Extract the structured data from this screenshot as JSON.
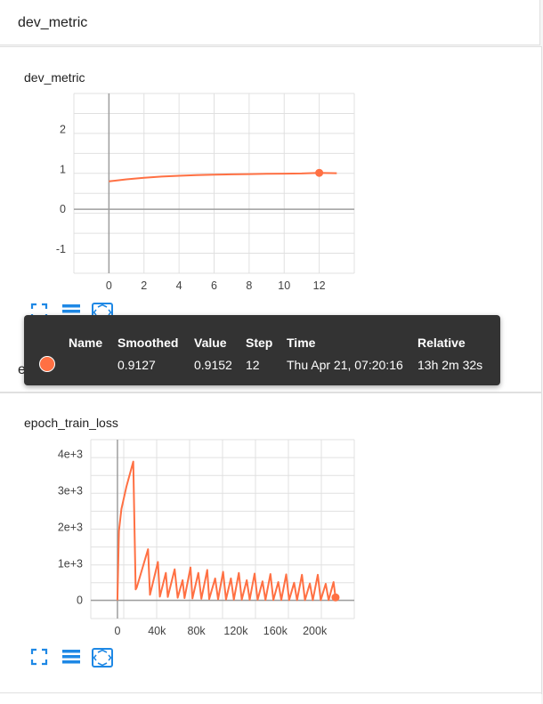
{
  "colors": {
    "series": "#ff7043",
    "toolbar": "#1e88e5",
    "axis": "#9e9e9e"
  },
  "section1": {
    "title": "dev_metric"
  },
  "card1": {
    "title": "dev_metric",
    "chart_data": {
      "type": "line",
      "title": "dev_metric",
      "xlabel": "",
      "ylabel": "",
      "xlim": [
        -2,
        14
      ],
      "ylim": [
        -1.6,
        2.9
      ],
      "x_ticks": [
        "0",
        "2",
        "4",
        "6",
        "8",
        "10",
        "12"
      ],
      "x_tick_values": [
        0,
        2,
        4,
        6,
        8,
        10,
        12
      ],
      "y_ticks": [
        "2",
        "1",
        "0",
        "-1"
      ],
      "y_tick_values": [
        2,
        1,
        0,
        -1
      ],
      "series": [
        {
          "x": [
            0,
            1,
            2,
            3,
            4,
            5,
            6,
            7,
            8,
            9,
            10,
            11,
            12,
            13
          ],
          "values": [
            0.7,
            0.75,
            0.79,
            0.82,
            0.84,
            0.855,
            0.865,
            0.875,
            0.882,
            0.888,
            0.893,
            0.897,
            0.9127,
            0.905
          ],
          "highlight_index": 12
        }
      ]
    }
  },
  "tooltip": {
    "headers": {
      "name": "Name",
      "smoothed": "Smoothed",
      "value": "Value",
      "step": "Step",
      "time": "Time",
      "relative": "Relative"
    },
    "row": {
      "smoothed": "0.9127",
      "value": "0.9152",
      "step": "12",
      "time": "Thu Apr 21, 07:20:16",
      "relative": "13h 2m 32s"
    }
  },
  "section2": {
    "title": "epoch_train_loss"
  },
  "card2": {
    "title": "epoch_train_loss",
    "chart_data": {
      "type": "line",
      "title": "epoch_train_loss",
      "xlabel": "",
      "ylabel": "",
      "xlim": [
        -27000,
        240000
      ],
      "ylim": [
        -500,
        4400
      ],
      "x_ticks": [
        "0",
        "40k",
        "80k",
        "120k",
        "160k",
        "200k"
      ],
      "x_tick_values": [
        0,
        40000,
        80000,
        120000,
        160000,
        200000
      ],
      "y_ticks": [
        "4e+3",
        "3e+3",
        "2e+3",
        "1e+3",
        "0"
      ],
      "y_tick_values": [
        4000,
        3000,
        2000,
        1000,
        0
      ],
      "series": [
        {
          "x": [
            0,
            1500,
            4000,
            9000,
            16000,
            18500,
            19500,
            31000,
            33000,
            41000,
            43000,
            49000,
            51000,
            58000,
            61000,
            66000,
            68000,
            74000,
            76000,
            82000,
            85000,
            91000,
            93000,
            99000,
            102000,
            107000,
            110000,
            115000,
            118000,
            123000,
            126000,
            131000,
            134000,
            139000,
            142000,
            147000,
            150000,
            155000,
            158000,
            163000,
            166000,
            171000,
            174000,
            179000,
            182000,
            187000,
            190000,
            195000,
            198000,
            203000,
            206000,
            211000,
            214000,
            219000,
            221000
          ],
          "values": [
            0,
            1900,
            2500,
            3100,
            3800,
            300,
            350,
            1400,
            150,
            1050,
            100,
            750,
            90,
            850,
            70,
            550,
            60,
            900,
            50,
            750,
            40,
            830,
            35,
            600,
            30,
            780,
            25,
            600,
            20,
            750,
            18,
            550,
            16,
            730,
            14,
            520,
            12,
            720,
            10,
            500,
            9,
            710,
            8,
            480,
            7,
            700,
            6,
            460,
            5,
            700,
            5,
            450,
            4,
            500,
            80
          ],
          "highlight_index": 54
        }
      ]
    }
  }
}
